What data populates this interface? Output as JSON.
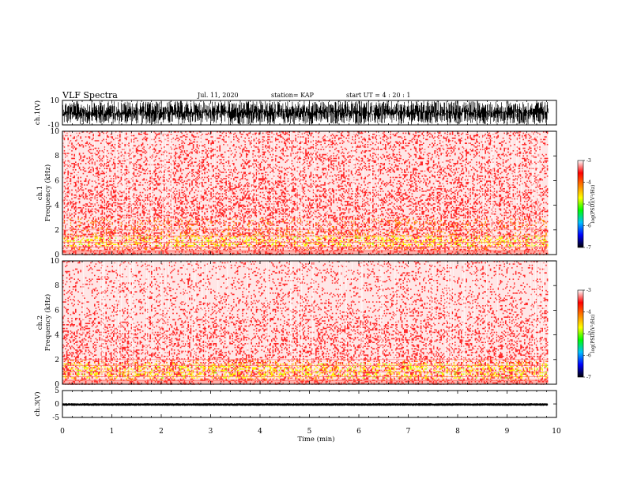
{
  "header": {
    "title": "VLF Spectra",
    "date": "Jul. 11, 2020",
    "station": "station= KAP",
    "start": "start UT = 4 : 20 : 1"
  },
  "chart_data": [
    {
      "type": "line",
      "name": "ch1-waveform",
      "ylabel": "ch.1(V)",
      "ylim": [
        -10,
        10
      ],
      "yticks": [
        "10",
        "-10"
      ],
      "xlim": [
        0,
        10
      ],
      "x_end_data_min": 9.83,
      "amplitude_range_V": [
        -9.5,
        9.5
      ],
      "grid": false
    },
    {
      "type": "heatmap",
      "name": "ch1-spectrogram",
      "ylabel": "ch.1\nFrequency (kHz)",
      "ylim": [
        0,
        10
      ],
      "yticks": [
        "0",
        "2",
        "4",
        "6",
        "8",
        "10"
      ],
      "xlim": [
        0,
        10
      ],
      "x_end_data_min": 9.83,
      "intensity_by_frequency_kHz": [
        {
          "f": 0.2,
          "level": 0.5
        },
        {
          "f": 0.9,
          "level": 0.9
        },
        {
          "f": 1.5,
          "level": 0.85
        },
        {
          "f": 2.0,
          "level": 0.7
        },
        {
          "f": 3.0,
          "level": 0.6
        },
        {
          "f": 4.5,
          "level": 0.55
        },
        {
          "f": 6.0,
          "level": 0.45
        },
        {
          "f": 8.0,
          "level": 0.4
        },
        {
          "f": 10.0,
          "level": 0.35
        }
      ],
      "colorbar": {
        "label": "log(PSD)(V²/Hz)",
        "range": [
          -7,
          -3
        ],
        "ticks": [
          "-3",
          "-4",
          "-5",
          "-6",
          "-7"
        ],
        "colors": [
          "#000000",
          "#0000ff",
          "#00c0ff",
          "#00ff00",
          "#ffff00",
          "#ff8000",
          "#ff0000",
          "#ffffff"
        ]
      }
    },
    {
      "type": "heatmap",
      "name": "ch2-spectrogram",
      "ylabel": "ch.2\nFrequency (kHz)",
      "ylim": [
        0,
        10
      ],
      "yticks": [
        "0",
        "2",
        "4",
        "6",
        "8",
        "10"
      ],
      "xlim": [
        0,
        10
      ],
      "x_end_data_min": 9.83,
      "intensity_by_frequency_kHz": [
        {
          "f": 0.2,
          "level": 0.5
        },
        {
          "f": 0.8,
          "level": 1.0
        },
        {
          "f": 1.4,
          "level": 1.0
        },
        {
          "f": 2.0,
          "level": 0.6
        },
        {
          "f": 3.0,
          "level": 0.45
        },
        {
          "f": 4.3,
          "level": 0.5
        },
        {
          "f": 6.0,
          "level": 0.3
        },
        {
          "f": 8.0,
          "level": 0.25
        },
        {
          "f": 10.0,
          "level": 0.2
        }
      ],
      "colorbar": {
        "label": "log(PSD)(V²/Hz)",
        "range": [
          -7,
          -3
        ],
        "ticks": [
          "-3",
          "-4",
          "-5",
          "-6",
          "-7"
        ],
        "colors": [
          "#000000",
          "#0000ff",
          "#00c0ff",
          "#00ff00",
          "#ffff00",
          "#ff8000",
          "#ff0000",
          "#ffffff"
        ]
      }
    },
    {
      "type": "line",
      "name": "ch3-waveform",
      "ylabel": "ch.3(V)",
      "ylim": [
        -5,
        5
      ],
      "yticks": [
        "5",
        "0",
        "-5"
      ],
      "xlim": [
        0,
        10
      ],
      "x_end_data_min": 9.83,
      "amplitude_range_V": [
        -0.6,
        0.4
      ],
      "offset_V": -0.1,
      "grid": false
    }
  ],
  "xaxis": {
    "label": "Time (min)",
    "ticks": [
      "0",
      "1",
      "2",
      "3",
      "4",
      "5",
      "6",
      "7",
      "8",
      "9",
      "10"
    ],
    "range": [
      0,
      10
    ]
  }
}
